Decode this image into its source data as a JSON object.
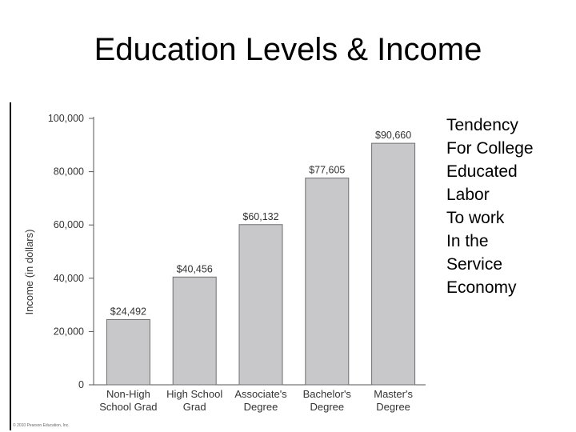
{
  "slide": {
    "title": "Education Levels & Income",
    "side_lines": [
      "Tendency",
      "For College",
      "Educated",
      "Labor",
      "To work",
      "In the",
      "Service",
      "Economy"
    ]
  },
  "chart_data": {
    "type": "bar",
    "categories": [
      [
        "Non-High",
        "School Grad"
      ],
      [
        "High School",
        "Grad"
      ],
      [
        "Associate's",
        "Degree"
      ],
      [
        "Bachelor's",
        "Degree"
      ],
      [
        "Master's",
        "Degree"
      ]
    ],
    "values": [
      24492,
      40456,
      60132,
      77605,
      90660
    ],
    "data_labels": [
      "$24,492",
      "$40,456",
      "$60,132",
      "$77,605",
      "$90,660"
    ],
    "ylabel": "Income (in dollars)",
    "yticks": [
      0,
      20000,
      40000,
      60000,
      80000,
      100000
    ],
    "ytick_labels": [
      "0",
      "20,000",
      "40,000",
      "60,000",
      "80,000",
      "100,000"
    ],
    "ylim": [
      0,
      100000
    ],
    "grid": false,
    "bar_color": "#c8c8cb",
    "copyright": "© 2010 Pearson Education, Inc."
  }
}
